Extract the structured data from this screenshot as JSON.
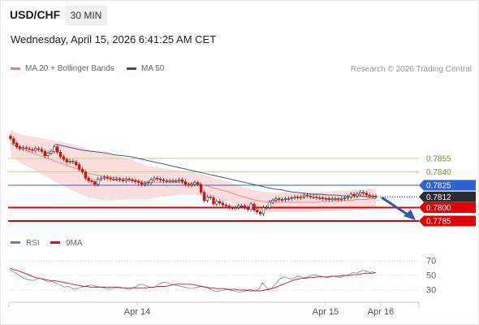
{
  "header": {
    "symbol": "USD/CHF",
    "timeframe": "30 MIN",
    "timestamp": "Wednesday, April 15, 2026 6:41:25 AM CET"
  },
  "legend": {
    "items": [
      {
        "label": "MA 20 + Bollinger Bands",
        "color": "#f08080"
      },
      {
        "label": "MA 50",
        "color": "#2c4f8c"
      }
    ],
    "credit": "Research © 2026 Trading Central"
  },
  "chart_data": [
    {
      "type": "candlestick",
      "title": "USD/CHF",
      "ylim": [
        0.778,
        0.789
      ],
      "x_ticks": [
        "Apr 14",
        "Apr 15",
        "Apr 16"
      ],
      "last_price": 0.7812,
      "levels": [
        {
          "value": 0.7855,
          "label": "0.7855",
          "kind": "resistance"
        },
        {
          "value": 0.784,
          "label": "0.7840",
          "kind": "resistance"
        },
        {
          "value": 0.7825,
          "label": "0.7825",
          "kind": "pivot"
        },
        {
          "value": 0.7812,
          "label": "0.7812",
          "kind": "last"
        },
        {
          "value": 0.78,
          "label": "0.7800",
          "kind": "support"
        },
        {
          "value": 0.7785,
          "label": "0.7785",
          "kind": "support"
        }
      ],
      "close": [
        0.7877,
        0.7872,
        0.7868,
        0.7866,
        0.7867,
        0.7866,
        0.7865,
        0.7864,
        0.7866,
        0.7865,
        0.7863,
        0.7858,
        0.7861,
        0.7863,
        0.7868,
        0.7862,
        0.7857,
        0.7854,
        0.7851,
        0.7852,
        0.7851,
        0.7848,
        0.7843,
        0.784,
        0.7833,
        0.783,
        0.7829,
        0.7826,
        0.7832,
        0.7833,
        0.7834,
        0.7833,
        0.7832,
        0.7832,
        0.7832,
        0.7831,
        0.783,
        0.7832,
        0.7831,
        0.783,
        0.7829,
        0.7828,
        0.7826,
        0.7827,
        0.7828,
        0.7831,
        0.7833,
        0.7832,
        0.7831,
        0.783,
        0.783,
        0.783,
        0.783,
        0.783,
        0.7831,
        0.7829,
        0.7826,
        0.7825,
        0.7826,
        0.7828,
        0.7826,
        0.7817,
        0.7808,
        0.7812,
        0.7811,
        0.7804,
        0.7807,
        0.7805,
        0.7803,
        0.7802,
        0.78,
        0.7799,
        0.78,
        0.7802,
        0.7802,
        0.78,
        0.7798,
        0.7804,
        0.7797,
        0.7795,
        0.7793,
        0.78,
        0.78,
        0.7806,
        0.7808,
        0.781,
        0.7809,
        0.7809,
        0.781,
        0.781,
        0.7811,
        0.7812,
        0.7811,
        0.7812,
        0.7814,
        0.7813,
        0.7812,
        0.7812,
        0.7811,
        0.7811,
        0.781,
        0.781,
        0.7809,
        0.781,
        0.781,
        0.7809,
        0.781,
        0.7811,
        0.7812,
        0.7815,
        0.7813,
        0.7815,
        0.7817,
        0.7816,
        0.7814,
        0.7813,
        0.7813,
        0.7812
      ],
      "ma20": [
        0.7872,
        0.7869,
        0.7866,
        0.7864,
        0.7862,
        0.786,
        0.7858,
        0.7856,
        0.7854,
        0.7852,
        0.785,
        0.7848,
        0.7846,
        0.7844,
        0.7842,
        0.784,
        0.7838,
        0.7837,
        0.7836,
        0.7835,
        0.7834,
        0.7834,
        0.7833,
        0.7832,
        0.7832,
        0.7831,
        0.783,
        0.7829,
        0.7828,
        0.7828,
        0.7828,
        0.7828,
        0.7828,
        0.7828,
        0.7828,
        0.7828,
        0.7827,
        0.7827,
        0.7826,
        0.7825,
        0.7824,
        0.7822,
        0.7821,
        0.7819,
        0.7818,
        0.7816,
        0.7814,
        0.7812,
        0.7811,
        0.7809,
        0.7808,
        0.7807,
        0.7806,
        0.7806,
        0.7806,
        0.7806,
        0.7806,
        0.7806,
        0.7806,
        0.7806,
        0.7806,
        0.7806,
        0.7806,
        0.7807,
        0.7807,
        0.7807,
        0.7808,
        0.7808,
        0.7808,
        0.7808,
        0.7809,
        0.7809,
        0.7809,
        0.781,
        0.781
      ],
      "ma50": [
        0.7868,
        0.7866,
        0.7864,
        0.7863,
        0.7862,
        0.7861,
        0.7859,
        0.7858,
        0.7857,
        0.7855,
        0.7853,
        0.7851,
        0.7849,
        0.7847,
        0.7845,
        0.7843,
        0.7841,
        0.7839,
        0.7837,
        0.7835,
        0.7833,
        0.7831,
        0.7829,
        0.7827,
        0.7825,
        0.7823,
        0.7821,
        0.782,
        0.7818,
        0.7817,
        0.7816,
        0.7815,
        0.7815,
        0.7814,
        0.7814,
        0.7813,
        0.7813,
        0.7813,
        0.7812,
        0.7812
      ]
    },
    {
      "type": "line",
      "title": "RSI",
      "ylim": [
        20,
        80
      ],
      "y_ticks": [
        70,
        50,
        30
      ],
      "series": [
        {
          "name": "RSI",
          "color": "#5a7fd6",
          "values": [
            58,
            55,
            53,
            50,
            47,
            45,
            44,
            43,
            44,
            46,
            45,
            43,
            41,
            42,
            40,
            38,
            36,
            34,
            35,
            33,
            31,
            32,
            34,
            35,
            36,
            37,
            36,
            35,
            34,
            33,
            32,
            31,
            32,
            33,
            34,
            33,
            32,
            31,
            33,
            35,
            37,
            38,
            36,
            34,
            33,
            35,
            38,
            40,
            41,
            39,
            38,
            37,
            36,
            35,
            34,
            33,
            32,
            33,
            34,
            35,
            34,
            33,
            31,
            29,
            28,
            29,
            30,
            31,
            30,
            29,
            28,
            27,
            28,
            29,
            31,
            30,
            29,
            32,
            40,
            35,
            30,
            33,
            38,
            44,
            47,
            48,
            46,
            45,
            47,
            49,
            48,
            47,
            48,
            50,
            51,
            50,
            49,
            48,
            47,
            48,
            49,
            48,
            47,
            49,
            50,
            52,
            54,
            53,
            55,
            57,
            56,
            54,
            55,
            53
          ]
        },
        {
          "name": "9MA",
          "color": "#e01010",
          "values": [
            60,
            58,
            57,
            55,
            53,
            51,
            49,
            47,
            46,
            45,
            44,
            43,
            43,
            42,
            41,
            40,
            39,
            38,
            37,
            36,
            35,
            35,
            34,
            34,
            34,
            34,
            34,
            34,
            34,
            34,
            33,
            33,
            33,
            33,
            33,
            33,
            33,
            33,
            34,
            34,
            35,
            35,
            35,
            36,
            37,
            38,
            38,
            38,
            38,
            38,
            37,
            36,
            35,
            34,
            33,
            33,
            32,
            32,
            32,
            31,
            31,
            31,
            30,
            30,
            30,
            29,
            29,
            29,
            29,
            30,
            31,
            32,
            34,
            36,
            38,
            40,
            42,
            44,
            45,
            46,
            46,
            47,
            47,
            48,
            48,
            48,
            48,
            49,
            49,
            49,
            50,
            50,
            50,
            51,
            51,
            52,
            53,
            53,
            53,
            54
          ]
        }
      ],
      "x_ticks": [
        "Apr 14",
        "Apr 15",
        "Apr 16"
      ]
    }
  ]
}
